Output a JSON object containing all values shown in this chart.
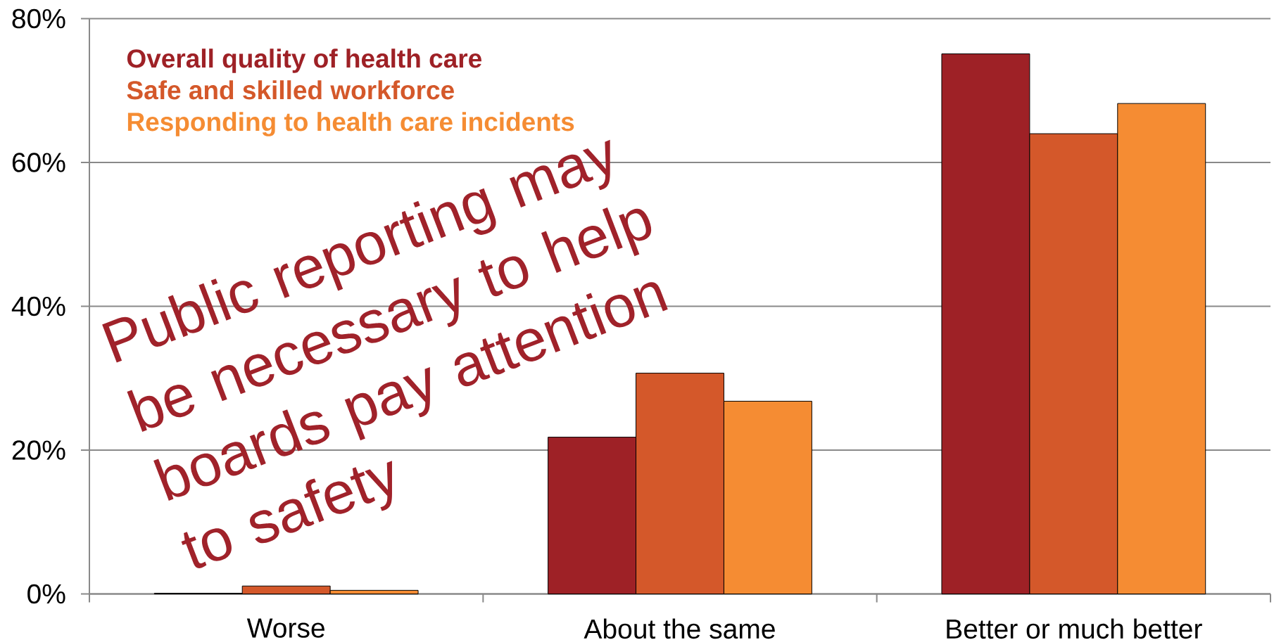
{
  "chart_data": {
    "type": "bar",
    "categories": [
      "Worse",
      "About the same",
      "Better or much better"
    ],
    "series": [
      {
        "name": "Overall quality of health care",
        "color": "#9e2126",
        "values": [
          0.1,
          21.8,
          75.1
        ]
      },
      {
        "name": "Safe and skilled workforce",
        "color": "#d4582a",
        "values": [
          1.1,
          30.7,
          64.0
        ]
      },
      {
        "name": "Responding to health care incidents",
        "color": "#f58c33",
        "values": [
          0.5,
          26.8,
          68.2
        ]
      }
    ],
    "ylim": [
      0,
      80
    ],
    "yticks": [
      {
        "value": 0,
        "label": "0%"
      },
      {
        "value": 20,
        "label": "20%"
      },
      {
        "value": 40,
        "label": "40%"
      },
      {
        "value": 60,
        "label": "60%"
      },
      {
        "value": 80,
        "label": "80%"
      }
    ],
    "grid": "y",
    "legend": "top left",
    "annotations": [
      "Public reporting may be necessary to help boards pay attention to safety"
    ]
  }
}
